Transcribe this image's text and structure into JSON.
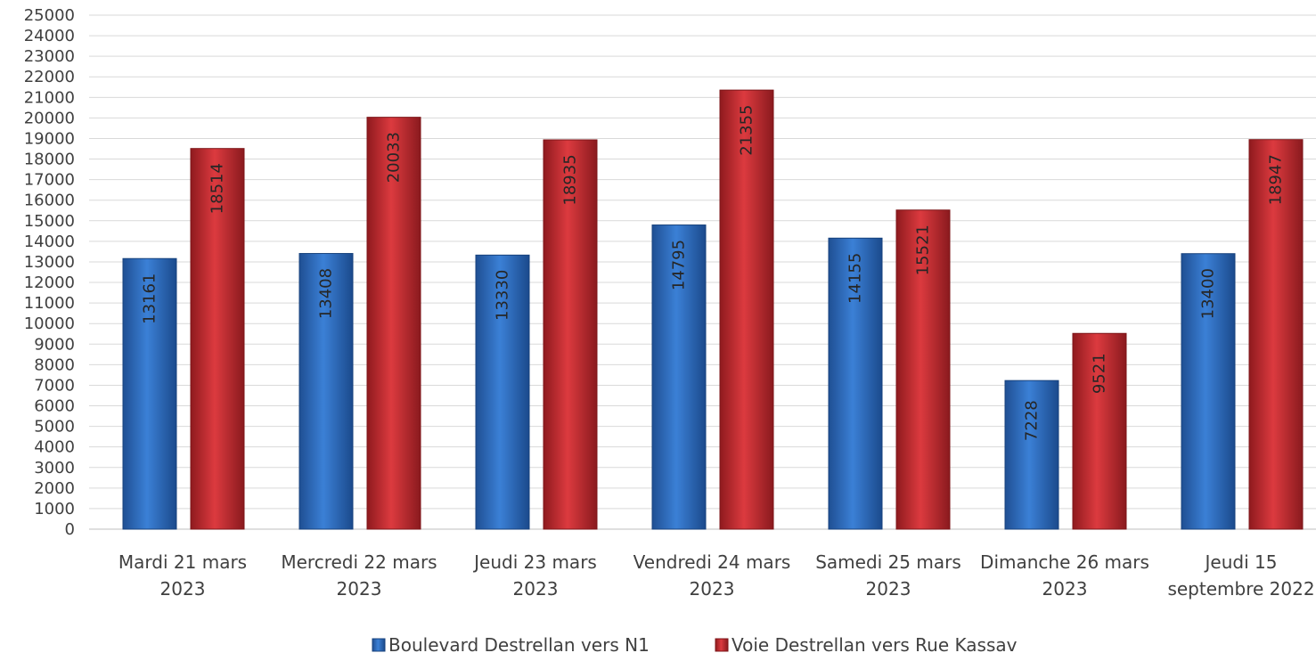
{
  "chart_data": {
    "type": "bar",
    "title": "",
    "xlabel": "",
    "ylabel": "",
    "ylim": [
      0,
      25000
    ],
    "ytick_step": 1000,
    "grid": true,
    "legend_position": "bottom",
    "categories": [
      [
        "Mardi 21 mars",
        "2023"
      ],
      [
        "Mercredi 22 mars",
        "2023"
      ],
      [
        "Jeudi 23 mars",
        "2023"
      ],
      [
        "Vendredi 24 mars",
        "2023"
      ],
      [
        "Samedi 25 mars",
        "2023"
      ],
      [
        "Dimanche 26 mars",
        "2023"
      ],
      [
        "Jeudi 15",
        "septembre 2022"
      ]
    ],
    "series": [
      {
        "name": "Boulevard Destrellan vers N1",
        "color": "#2e6fc0",
        "values": [
          13161,
          13408,
          13330,
          14795,
          14155,
          7228,
          13400
        ]
      },
      {
        "name": "Voie Destrellan vers Rue Kassav",
        "color": "#c0282e",
        "values": [
          18514,
          20033,
          18935,
          21355,
          15521,
          9521,
          18947
        ]
      }
    ]
  }
}
